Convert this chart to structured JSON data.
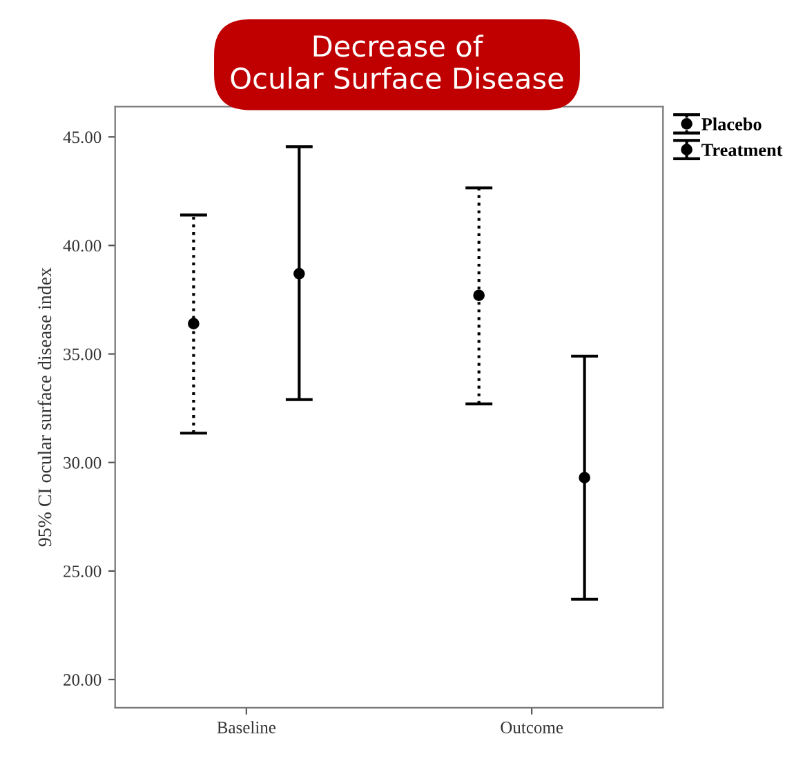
{
  "chart_data": {
    "type": "scatter",
    "title": "Decrease of\nOcular Surface Disease",
    "ylabel": "95% CI ocular surface disease index",
    "categories": [
      "Baseline",
      "Outcome"
    ],
    "series": [
      {
        "name": "Placebo",
        "color": "#000000",
        "line_style": "dotted",
        "values": [
          36.4,
          37.7
        ],
        "errors": [
          [
            31.35,
            41.4
          ],
          [
            32.7,
            42.65
          ]
        ]
      },
      {
        "name": "Treatment",
        "color": "#000000",
        "line_style": "solid",
        "values": [
          38.7,
          29.3
        ],
        "errors": [
          [
            32.9,
            44.55
          ],
          [
            23.7,
            34.9
          ]
        ]
      }
    ],
    "marker": "circle",
    "ylim": [
      18.7,
      46.4
    ],
    "yticks": [
      {
        "value": 20,
        "label": "20.00"
      },
      {
        "value": 25,
        "label": "25.00"
      },
      {
        "value": 30,
        "label": "30.00"
      },
      {
        "value": 35,
        "label": "35.00"
      },
      {
        "value": 40,
        "label": "40.00"
      },
      {
        "value": 45,
        "label": "45.00"
      }
    ],
    "grid": false,
    "legend": "top right"
  }
}
